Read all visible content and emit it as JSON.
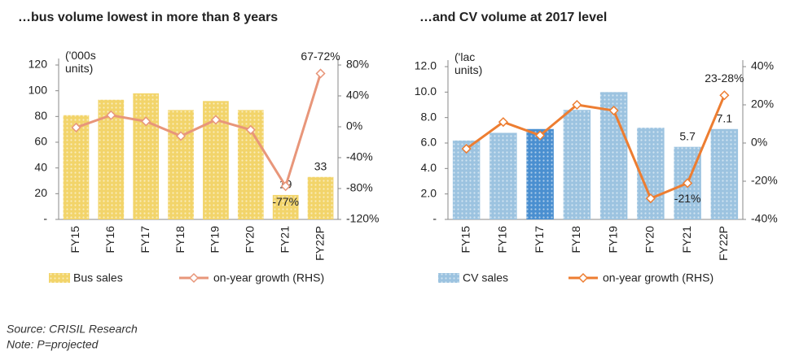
{
  "chart_data": [
    {
      "type": "combo",
      "title": "…bus volume lowest in more than 8 years",
      "y_label": "('000s units)",
      "categories": [
        "FY15",
        "FY16",
        "FY17",
        "FY18",
        "FY19",
        "FY20",
        "FY21",
        "FY22P"
      ],
      "ylim": [
        0,
        120
      ],
      "yticks": [
        {
          "value": 0,
          "label": "-"
        },
        20,
        40,
        60,
        80,
        100,
        120
      ],
      "y2lim": [
        -120,
        80
      ],
      "y2ticks": [
        {
          "value": -120,
          "label": "-120%"
        },
        {
          "value": -80,
          "label": "-80%"
        },
        {
          "value": -40,
          "label": "-40%"
        },
        {
          "value": 0,
          "label": "0%"
        },
        {
          "value": 40,
          "label": "40%"
        },
        {
          "value": 80,
          "label": "80%"
        }
      ],
      "series": [
        {
          "name": "Bus sales",
          "type": "bar",
          "color": "#f2d46a",
          "values": [
            81,
            93,
            98,
            85,
            92,
            85,
            19,
            33
          ],
          "value_labels": [
            null,
            null,
            null,
            null,
            null,
            null,
            "19",
            "33"
          ]
        },
        {
          "name": "on-year growth (RHS)",
          "type": "line",
          "axis": "y2",
          "color": "#e8967a",
          "values": [
            -1,
            15,
            7,
            -12,
            9,
            -4,
            -77,
            69
          ],
          "value_labels": [
            null,
            null,
            null,
            null,
            null,
            null,
            "-77%",
            null
          ]
        }
      ],
      "annotations": [
        "67-72%"
      ]
    },
    {
      "type": "combo",
      "title": "…and CV volume at 2017 level",
      "y_label": "('lac units)",
      "categories": [
        "FY15",
        "FY16",
        "FY17",
        "FY18",
        "FY19",
        "FY20",
        "FY21",
        "FY22P"
      ],
      "ylim": [
        0,
        12
      ],
      "yticks": [
        {
          "value": 0,
          "label": "-"
        },
        {
          "value": 2,
          "label": "2.0"
        },
        {
          "value": 4,
          "label": "4.0"
        },
        {
          "value": 6,
          "label": "6.0"
        },
        {
          "value": 8,
          "label": "8.0"
        },
        {
          "value": 10,
          "label": "10.0"
        },
        {
          "value": 12,
          "label": "12.0"
        }
      ],
      "y2lim": [
        -40,
        40
      ],
      "y2ticks": [
        {
          "value": -40,
          "label": "-40%"
        },
        {
          "value": -20,
          "label": "-20%"
        },
        {
          "value": 0,
          "label": "0%"
        },
        {
          "value": 20,
          "label": "20%"
        },
        {
          "value": 40,
          "label": "40%"
        }
      ],
      "series": [
        {
          "name": "CV sales",
          "type": "bar",
          "color": "#9cc3e0",
          "colors": [
            "#9cc3e0",
            "#9cc3e0",
            "#4a8fd0",
            "#9cc3e0",
            "#9cc3e0",
            "#9cc3e0",
            "#9cc3e0",
            "#9cc3e0"
          ],
          "values": [
            6.2,
            6.8,
            7.1,
            8.6,
            10.0,
            7.2,
            5.7,
            7.1
          ],
          "value_labels": [
            null,
            null,
            null,
            null,
            null,
            null,
            "5.7",
            "7.1"
          ]
        },
        {
          "name": "on-year growth (RHS)",
          "type": "line",
          "axis": "y2",
          "color": "#ed7d31",
          "values": [
            -3,
            11,
            4,
            20,
            17,
            -29,
            -21,
            25
          ],
          "value_labels": [
            null,
            null,
            null,
            null,
            null,
            null,
            "-21%",
            null
          ]
        }
      ],
      "annotations": [
        "23-28%"
      ]
    }
  ],
  "source": "Source: CRISIL Research",
  "note": "Note: P=projected"
}
